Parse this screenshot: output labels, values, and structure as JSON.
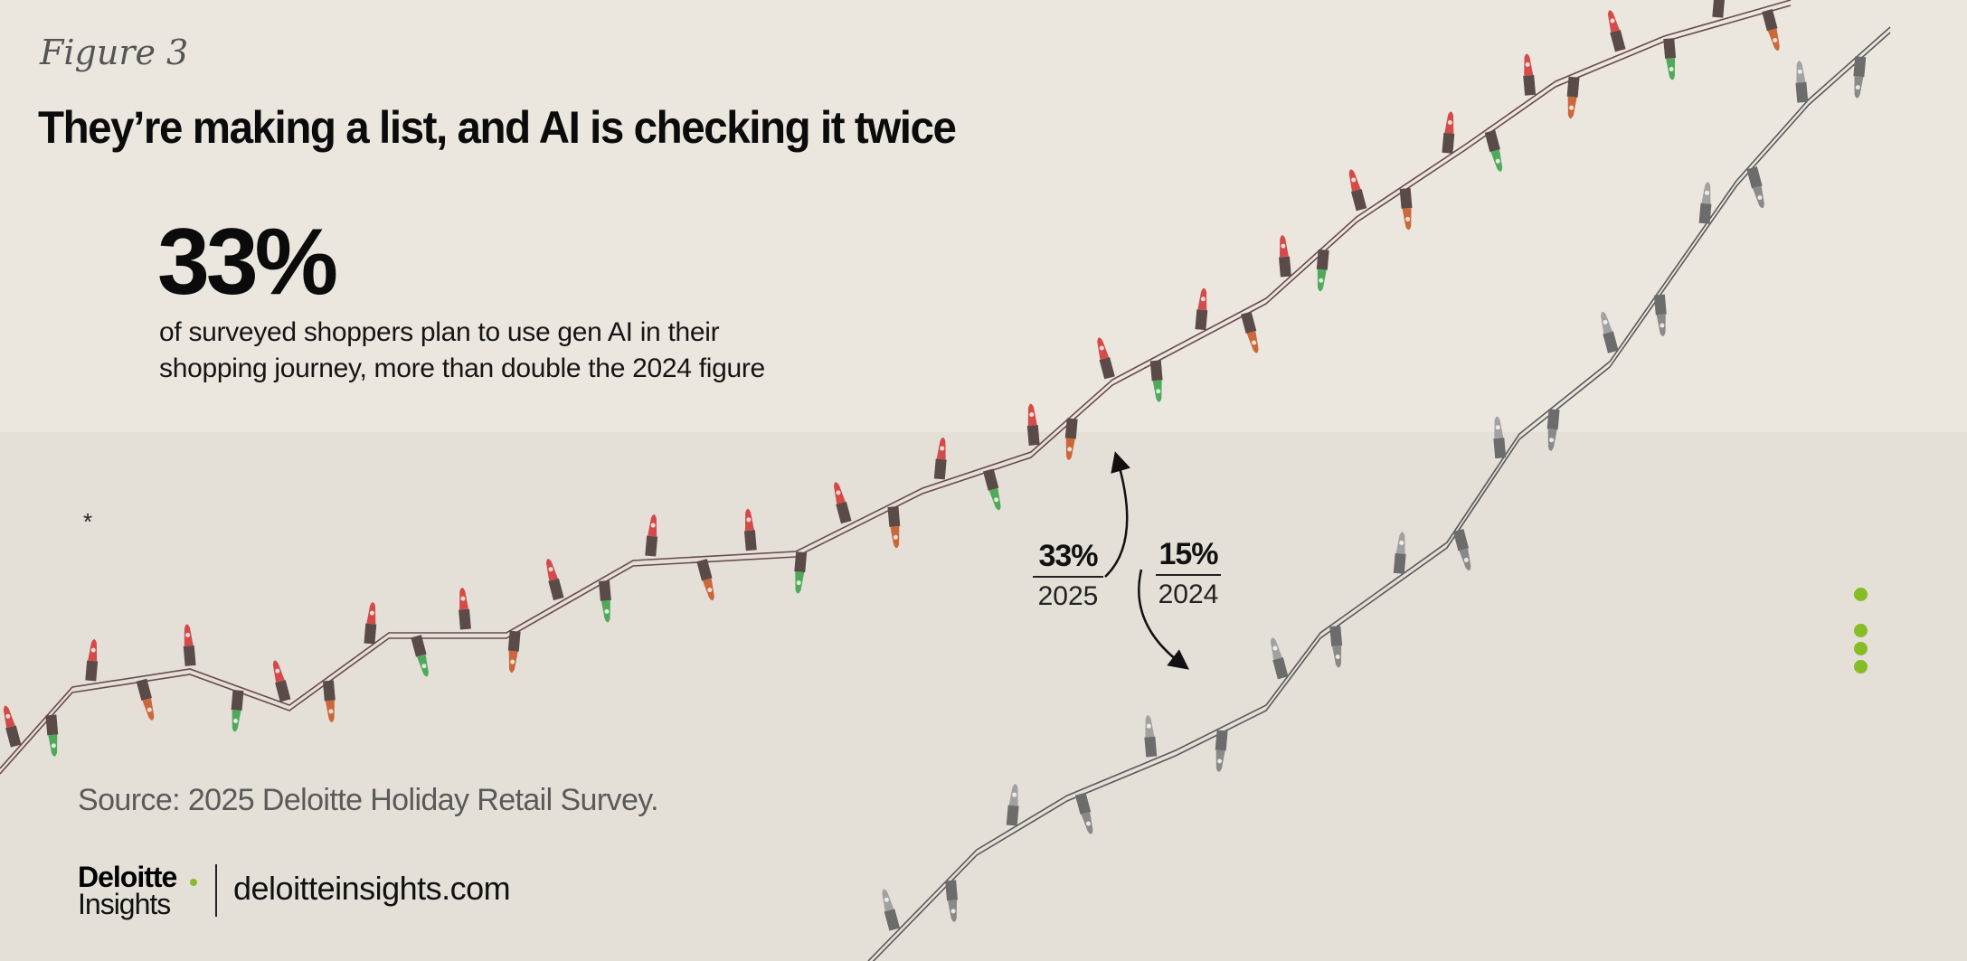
{
  "figure_label": "Figure 3",
  "title": "They’re making a list, and AI is checking it twice",
  "highlight": {
    "value": "33%",
    "description": "of surveyed shoppers plan to use gen AI in their shopping journey, more than double the 2024 figure"
  },
  "asterisk": "*",
  "chart_data": {
    "type": "bar",
    "categories": [
      "2025",
      "2024"
    ],
    "values": [
      33,
      15
    ],
    "value_labels": [
      "33%",
      "15%"
    ],
    "unit": "%",
    "colors": [
      "#c8323a",
      "#8a8a8a"
    ]
  },
  "source": "Source: 2025 Deloitte Holiday Retail Survey.",
  "footer": {
    "brand": "Deloitte",
    "brand_sub": "Insights",
    "brand_dot_color": "#86bc25",
    "website": "deloitteinsights.com"
  },
  "colors": {
    "background": "#ebe7df",
    "band": "#e4e0d8",
    "accent_green": "#86bc25"
  }
}
